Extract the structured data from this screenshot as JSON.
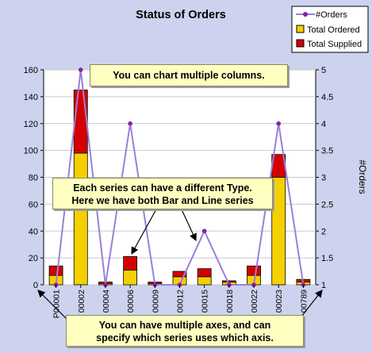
{
  "chart_data": {
    "type": "bar",
    "title": "Status of Orders",
    "ylabel": "",
    "y2label": "#Orders",
    "ylim": [
      0,
      160
    ],
    "y2lim": [
      1,
      5
    ],
    "yticks": [
      "0",
      "20",
      "40",
      "60",
      "80",
      "100",
      "120",
      "140",
      "160"
    ],
    "y2ticks": [
      "1",
      "1.5",
      "2",
      "2.5",
      "3",
      "3.5",
      "4",
      "4.5",
      "5"
    ],
    "categories": [
      "P00001",
      "00002",
      "00004",
      "00006",
      "00009",
      "00012",
      "00015",
      "00018",
      "00022",
      "00023",
      "00789"
    ],
    "legend_position": "top-right",
    "grid": true,
    "series": [
      {
        "name": "#Orders",
        "type": "line",
        "axis": "right",
        "color": "#9a7fd8",
        "marker_color": "#8a1fa0",
        "values": [
          1,
          5,
          1,
          4,
          1,
          1,
          2,
          1,
          1,
          4,
          1
        ]
      },
      {
        "name": "Total Ordered",
        "type": "bar",
        "axis": "left",
        "color": "#f5d000",
        "values": [
          7,
          98,
          1,
          11,
          1,
          6,
          6,
          2,
          7,
          80,
          2
        ]
      },
      {
        "name": "Total Supplied",
        "type": "bar",
        "axis": "left",
        "color": "#d40000",
        "values": [
          7,
          47,
          1,
          10,
          1,
          4,
          6,
          1,
          7,
          17,
          2
        ]
      }
    ]
  },
  "annotations": {
    "top": "You can chart multiple columns.",
    "middle_line1": "Each series can have a different Type.",
    "middle_line2": "Here we have both Bar and Line series",
    "bottom_line1": "You can have multiple axes, and can",
    "bottom_line2": "specify which series uses which axis."
  }
}
